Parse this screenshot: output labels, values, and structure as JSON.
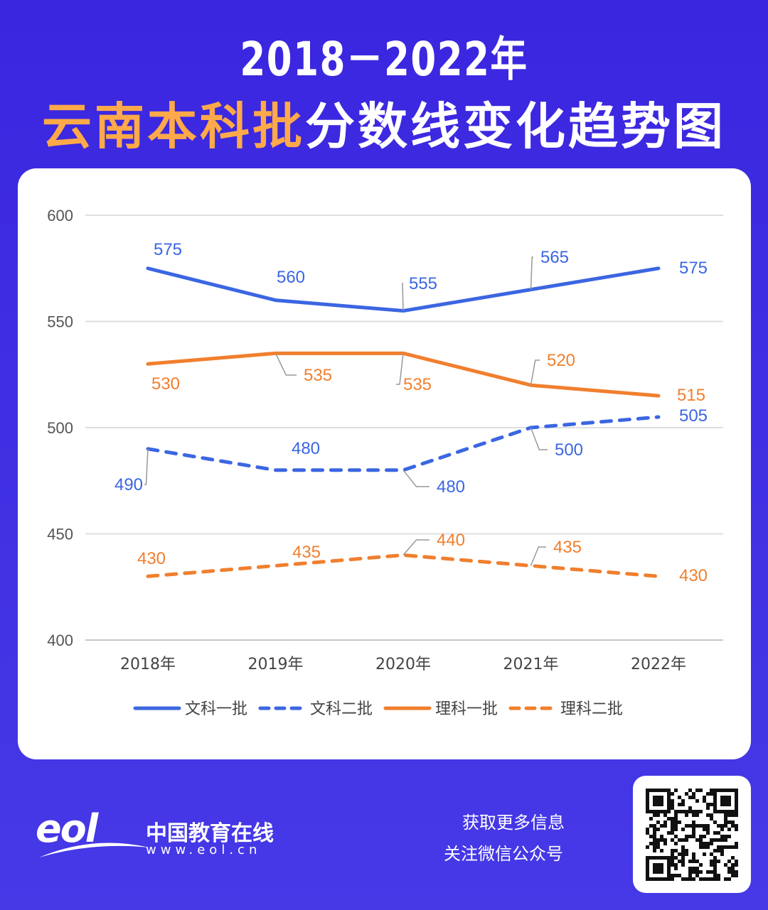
{
  "title": {
    "line1": "2018－2022年",
    "line2_highlight": "云南本科批",
    "line2_rest": "分数线变化趋势图"
  },
  "chart_data": {
    "type": "line",
    "title": "2018－2022年云南本科批分数线变化趋势图",
    "categories": [
      "2018年",
      "2019年",
      "2020年",
      "2021年",
      "2022年"
    ],
    "ylim": [
      400,
      600
    ],
    "yticks": [
      400,
      450,
      500,
      550,
      600
    ],
    "grid": true,
    "legend_position": "bottom",
    "series": [
      {
        "name": "文科一批",
        "values": [
          575,
          560,
          555,
          565,
          575
        ],
        "color": "#3b66e2",
        "style": "solid"
      },
      {
        "name": "文科二批",
        "values": [
          490,
          480,
          480,
          500,
          505
        ],
        "color": "#3b66e2",
        "style": "dashed"
      },
      {
        "name": "理科一批",
        "values": [
          530,
          535,
          535,
          520,
          515
        ],
        "color": "#f07f2e",
        "style": "solid"
      },
      {
        "name": "理科二批",
        "values": [
          430,
          435,
          440,
          435,
          430
        ],
        "color": "#f07f2e",
        "style": "dashed"
      }
    ]
  },
  "footer": {
    "logo_text": "eol",
    "brand": "中国教育在线",
    "url": "www.eol.cn",
    "cta1": "获取更多信息",
    "cta2": "关注微信公众号"
  }
}
